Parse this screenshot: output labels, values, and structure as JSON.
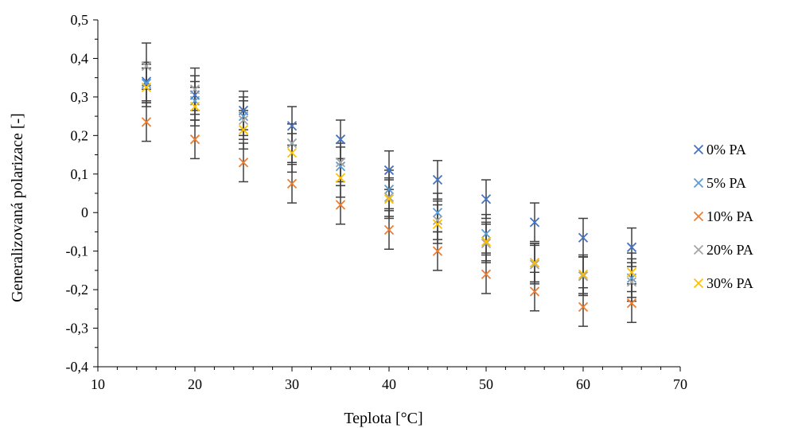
{
  "chart_data": {
    "type": "scatter",
    "xlabel": "Teplota [°C]",
    "ylabel": "Generalizovaná polarizace [-]",
    "xlim": [
      10,
      70
    ],
    "ylim": [
      -0.4,
      0.5
    ],
    "xticks": [
      10,
      20,
      30,
      40,
      50,
      60,
      70
    ],
    "yticks": [
      -0.4,
      -0.3,
      -0.2,
      -0.1,
      0,
      0.1,
      0.2,
      0.3,
      0.4,
      0.5
    ],
    "ytick_labels": [
      "-0,4",
      "-0,3",
      "-0,2",
      "-0,1",
      "0",
      "0,1",
      "0,2",
      "0,3",
      "0,4",
      "0,5"
    ],
    "grid": false,
    "legend_position": "right",
    "error_bar_color": "#404040",
    "x": [
      15,
      20,
      25,
      30,
      35,
      40,
      45,
      50,
      55,
      60,
      65
    ],
    "series": [
      {
        "name": "0% PA",
        "color": "#4472C4",
        "marker": "x",
        "values": [
          0.34,
          0.305,
          0.265,
          0.225,
          0.19,
          0.11,
          0.085,
          0.035,
          -0.025,
          -0.065,
          -0.09
        ],
        "errors": [
          0.05,
          0.05,
          0.05,
          0.05,
          0.05,
          0.05,
          0.05,
          0.05,
          0.05,
          0.05,
          0.05
        ]
      },
      {
        "name": "5% PA",
        "color": "#5B9BD5",
        "marker": "x",
        "values": [
          0.335,
          0.29,
          0.25,
          0.18,
          0.12,
          0.06,
          0.0,
          -0.055,
          -0.13,
          -0.165,
          -0.17
        ],
        "errors": [
          0.05,
          0.05,
          0.05,
          0.05,
          0.05,
          0.05,
          0.05,
          0.05,
          0.05,
          0.05,
          0.05
        ]
      },
      {
        "name": "10% PA",
        "color": "#ED7D31",
        "marker": "x",
        "values": [
          0.235,
          0.19,
          0.13,
          0.075,
          0.02,
          -0.045,
          -0.1,
          -0.16,
          -0.205,
          -0.245,
          -0.235
        ],
        "errors": [
          0.05,
          0.05,
          0.05,
          0.05,
          0.05,
          0.05,
          0.05,
          0.05,
          0.05,
          0.05,
          0.05
        ]
      },
      {
        "name": "20% PA",
        "color": "#A5A5A5",
        "marker": "x",
        "values": [
          0.38,
          0.32,
          0.24,
          0.18,
          0.13,
          0.04,
          -0.02,
          -0.08,
          -0.135,
          -0.165,
          -0.18
        ],
        "errors": [
          0.06,
          0.055,
          0.05,
          0.05,
          0.05,
          0.05,
          0.05,
          0.05,
          0.05,
          0.05,
          0.05
        ]
      },
      {
        "name": "30% PA",
        "color": "#FFC000",
        "marker": "x",
        "values": [
          0.325,
          0.275,
          0.215,
          0.155,
          0.09,
          0.035,
          -0.03,
          -0.075,
          -0.13,
          -0.16,
          -0.155
        ],
        "errors": [
          0.05,
          0.05,
          0.05,
          0.05,
          0.05,
          0.05,
          0.05,
          0.05,
          0.05,
          0.05,
          0.05
        ]
      }
    ]
  }
}
